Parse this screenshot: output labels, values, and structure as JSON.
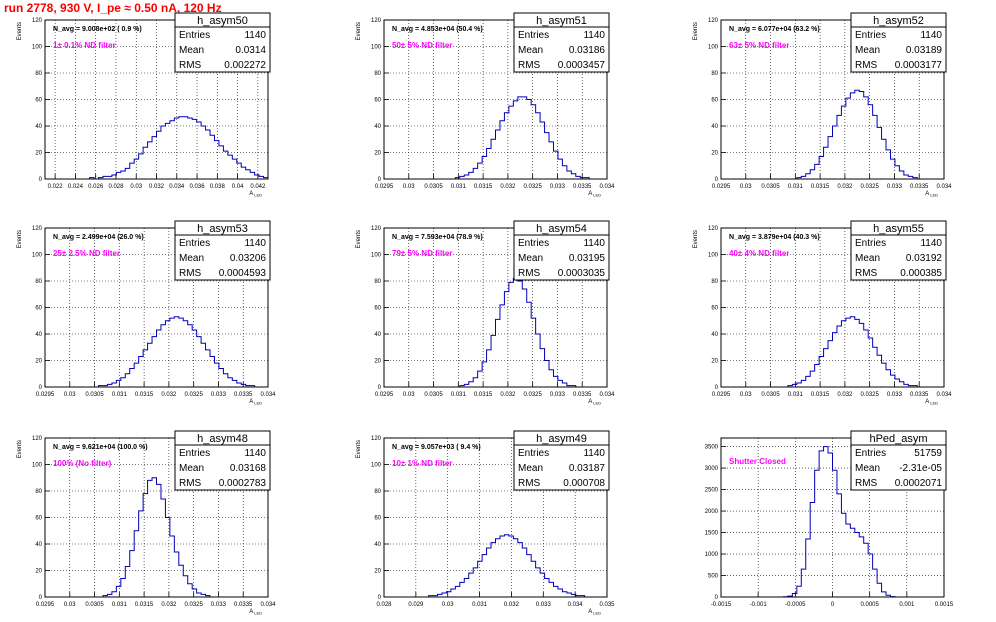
{
  "page": {
    "title": "run 2778,   930 V, I_pe ≈ 0.50 nA, 120 Hz"
  },
  "colors": {
    "histogram": "#0000b8",
    "annotation": "#ff00ff",
    "title_red": "#ff0000",
    "grid": "#000000"
  },
  "chart_data": [
    {
      "type": "bar",
      "name": "h_asym50",
      "ylabel": "Events",
      "xlabel": "A_{LED}",
      "xlim": [
        0.021,
        0.043
      ],
      "ylim": [
        0,
        120
      ],
      "xticks": [
        "0.022",
        "0.024",
        "0.026",
        "0.028",
        "0.03",
        "0.032",
        "0.034",
        "0.036",
        "0.038",
        "0.04",
        "0.042"
      ],
      "yticks": [
        "0",
        "20",
        "40",
        "60",
        "80",
        "100",
        "120"
      ],
      "stats": {
        "entries": "1140",
        "mean": "0.0314",
        "rms": "0.002272"
      },
      "navg": "N_avg = 9.008e+02 ( 0.9 %)",
      "note": "1± 0.1% ND filter",
      "grid": true,
      "values": [
        0,
        0,
        0,
        0,
        0,
        0,
        0,
        0,
        0,
        0,
        1,
        0,
        1,
        2,
        2,
        3,
        5,
        6,
        8,
        12,
        15,
        19,
        24,
        28,
        32,
        36,
        40,
        42,
        44,
        46,
        47,
        47,
        46,
        45,
        43,
        40,
        37,
        33,
        29,
        25,
        21,
        18,
        15,
        12,
        9,
        7,
        5,
        3,
        2,
        1
      ]
    },
    {
      "type": "bar",
      "name": "h_asym51",
      "ylabel": "Events",
      "xlabel": "A_{LED}",
      "xlim": [
        0.0295,
        0.034
      ],
      "ylim": [
        0,
        120
      ],
      "xticks": [
        "0.0295",
        "0.03",
        "0.0305",
        "0.031",
        "0.0315",
        "0.032",
        "0.0325",
        "0.033",
        "0.0335",
        "0.034"
      ],
      "yticks": [
        "0",
        "20",
        "40",
        "60",
        "80",
        "100",
        "120"
      ],
      "stats": {
        "entries": "1140",
        "mean": "0.03186",
        "rms": "0.0003457"
      },
      "navg": "N_avg = 4.853e+04 (50.4 %)",
      "note": "50± 5% ND filter",
      "grid": true,
      "values": [
        0,
        0,
        0,
        0,
        0,
        0,
        0,
        0,
        0,
        0,
        0,
        0,
        0,
        0,
        0,
        0,
        1,
        2,
        3,
        5,
        8,
        12,
        17,
        23,
        30,
        37,
        44,
        50,
        55,
        59,
        62,
        62,
        60,
        56,
        50,
        43,
        35,
        28,
        21,
        15,
        10,
        6,
        4,
        2,
        1,
        1,
        0,
        0,
        0,
        0
      ]
    },
    {
      "type": "bar",
      "name": "h_asym52",
      "ylabel": "Events",
      "xlabel": "A_{LED}",
      "xlim": [
        0.0295,
        0.034
      ],
      "ylim": [
        0,
        120
      ],
      "xticks": [
        "0.0295",
        "0.03",
        "0.0305",
        "0.031",
        "0.0315",
        "0.032",
        "0.0325",
        "0.033",
        "0.0335",
        "0.034"
      ],
      "yticks": [
        "0",
        "20",
        "40",
        "60",
        "80",
        "100",
        "120"
      ],
      "stats": {
        "entries": "1140",
        "mean": "0.03189",
        "rms": "0.0003177"
      },
      "navg": "N_avg = 6.077e+04 (63.2 %)",
      "note": "63± 5% ND filter",
      "grid": true,
      "values": [
        0,
        0,
        0,
        0,
        0,
        0,
        0,
        0,
        0,
        0,
        0,
        0,
        0,
        0,
        0,
        0,
        0,
        1,
        2,
        4,
        7,
        11,
        17,
        24,
        32,
        40,
        48,
        55,
        61,
        65,
        67,
        66,
        62,
        56,
        48,
        39,
        30,
        22,
        15,
        10,
        6,
        3,
        2,
        1,
        0,
        0,
        0,
        0,
        0,
        0
      ]
    },
    {
      "type": "bar",
      "name": "h_asym53",
      "ylabel": "Events",
      "xlabel": "A_{LED}",
      "xlim": [
        0.0295,
        0.034
      ],
      "ylim": [
        0,
        120
      ],
      "xticks": [
        "0.0295",
        "0.03",
        "0.0305",
        "0.031",
        "0.0315",
        "0.032",
        "0.0325",
        "0.033",
        "0.0335",
        "0.034"
      ],
      "yticks": [
        "0",
        "20",
        "40",
        "60",
        "80",
        "100",
        "120"
      ],
      "stats": {
        "entries": "1140",
        "mean": "0.03206",
        "rms": "0.0004593"
      },
      "navg": "N_avg = 2.499e+04 (26.0 %)",
      "note": "25± 2.5% ND filter",
      "grid": true,
      "values": [
        0,
        0,
        0,
        0,
        0,
        0,
        0,
        0,
        0,
        0,
        0,
        0,
        1,
        1,
        2,
        3,
        5,
        7,
        10,
        14,
        18,
        23,
        28,
        33,
        38,
        43,
        47,
        50,
        52,
        53,
        52,
        50,
        47,
        43,
        38,
        33,
        28,
        23,
        18,
        14,
        10,
        7,
        5,
        3,
        2,
        1,
        1,
        0,
        0,
        0
      ]
    },
    {
      "type": "bar",
      "name": "h_asym54",
      "ylabel": "Events",
      "xlabel": "A_{LED}",
      "xlim": [
        0.0295,
        0.034
      ],
      "ylim": [
        0,
        120
      ],
      "xticks": [
        "0.0295",
        "0.03",
        "0.0305",
        "0.031",
        "0.0315",
        "0.032",
        "0.0325",
        "0.033",
        "0.0335",
        "0.034"
      ],
      "yticks": [
        "0",
        "20",
        "40",
        "60",
        "80",
        "100",
        "120"
      ],
      "stats": {
        "entries": "1140",
        "mean": "0.03195",
        "rms": "0.0003035"
      },
      "navg": "N_avg = 7.593e+04 (78.9 %)",
      "note": "79± 5% ND filter",
      "grid": true,
      "values": [
        0,
        0,
        0,
        0,
        0,
        0,
        0,
        0,
        0,
        0,
        0,
        0,
        0,
        0,
        0,
        0,
        0,
        1,
        2,
        4,
        7,
        12,
        19,
        28,
        39,
        51,
        62,
        72,
        79,
        82,
        80,
        74,
        64,
        52,
        40,
        29,
        20,
        13,
        8,
        5,
        3,
        1,
        1,
        0,
        0,
        0,
        0,
        0,
        0,
        0
      ]
    },
    {
      "type": "bar",
      "name": "h_asym55",
      "ylabel": "Events",
      "xlabel": "A_{LED}",
      "xlim": [
        0.0295,
        0.034
      ],
      "ylim": [
        0,
        120
      ],
      "xticks": [
        "0.0295",
        "0.03",
        "0.0305",
        "0.031",
        "0.0315",
        "0.032",
        "0.0325",
        "0.033",
        "0.0335",
        "0.034"
      ],
      "yticks": [
        "0",
        "20",
        "40",
        "60",
        "80",
        "100",
        "120"
      ],
      "stats": {
        "entries": "1140",
        "mean": "0.03192",
        "rms": "0.000385"
      },
      "navg": "N_avg = 3.879e+04 (40.3 %)",
      "note": "40± 4% ND filter",
      "grid": true,
      "values": [
        0,
        0,
        0,
        0,
        0,
        0,
        0,
        0,
        0,
        0,
        0,
        0,
        0,
        0,
        0,
        1,
        2,
        3,
        5,
        8,
        12,
        17,
        23,
        29,
        35,
        41,
        46,
        50,
        52,
        53,
        51,
        48,
        43,
        37,
        30,
        24,
        18,
        13,
        9,
        6,
        4,
        2,
        1,
        1,
        0,
        0,
        0,
        0,
        0,
        0
      ]
    },
    {
      "type": "bar",
      "name": "h_asym48",
      "ylabel": "Events",
      "xlabel": "A_{LED}",
      "xlim": [
        0.0295,
        0.034
      ],
      "ylim": [
        0,
        120
      ],
      "xticks": [
        "0.0295",
        "0.03",
        "0.0305",
        "0.031",
        "0.0315",
        "0.032",
        "0.0325",
        "0.033",
        "0.0335",
        "0.034"
      ],
      "yticks": [
        "0",
        "20",
        "40",
        "60",
        "80",
        "100",
        "120"
      ],
      "stats": {
        "entries": "1140",
        "mean": "0.03168",
        "rms": "0.0002783"
      },
      "navg": "N_avg = 9.621e+04 (100.0 %)",
      "note": "100% (No filter)",
      "grid": true,
      "values": [
        0,
        0,
        0,
        0,
        0,
        0,
        0,
        0,
        0,
        0,
        0,
        0,
        0,
        1,
        2,
        4,
        8,
        14,
        23,
        35,
        50,
        65,
        78,
        88,
        90,
        85,
        74,
        60,
        46,
        34,
        24,
        16,
        10,
        6,
        3,
        2,
        1,
        0,
        0,
        0,
        0,
        0,
        0,
        0,
        0,
        0,
        0,
        0,
        0,
        0
      ]
    },
    {
      "type": "bar",
      "name": "h_asym49",
      "ylabel": "Events",
      "xlabel": "A_{LED}",
      "xlim": [
        0.028,
        0.035
      ],
      "ylim": [
        0,
        120
      ],
      "xticks": [
        "0.028",
        "0.029",
        "0.03",
        "0.031",
        "0.032",
        "0.033",
        "0.034",
        "0.035"
      ],
      "yticks": [
        "0",
        "20",
        "40",
        "60",
        "80",
        "100",
        "120"
      ],
      "stats": {
        "entries": "1140",
        "mean": "0.03187",
        "rms": "0.000708"
      },
      "navg": "N_avg = 9.057e+03 ( 9.4 %)",
      "note": "10± 1% ND filter",
      "grid": true,
      "values": [
        0,
        0,
        0,
        0,
        0,
        0,
        0,
        0,
        0,
        0,
        1,
        1,
        2,
        3,
        4,
        6,
        8,
        11,
        14,
        18,
        22,
        27,
        32,
        37,
        41,
        44,
        46,
        47,
        46,
        44,
        41,
        37,
        32,
        27,
        22,
        18,
        14,
        11,
        8,
        6,
        4,
        3,
        2,
        1,
        1,
        0,
        0,
        0,
        0,
        0
      ]
    },
    {
      "type": "bar",
      "name": "hPed_asym",
      "ylabel": "",
      "xlabel": "",
      "xlim": [
        -0.0015,
        0.0015
      ],
      "ylim": [
        0,
        3700
      ],
      "xticks": [
        "-0.0015",
        "-0.001",
        "-0.0005",
        "0",
        "0.0005",
        "0.001",
        "0.0015"
      ],
      "yticks": [
        "0",
        "500",
        "1000",
        "1500",
        "2000",
        "2500",
        "3000",
        "3500"
      ],
      "stats": {
        "entries": "51759",
        "mean": "-2.31e-05",
        "rms": "0.0002071"
      },
      "navg": "",
      "note": "Shutter Closed",
      "grid": true,
      "values": [
        0,
        0,
        0,
        0,
        0,
        0,
        0,
        0,
        0,
        0,
        0,
        0,
        0,
        0,
        5,
        20,
        80,
        250,
        650,
        1350,
        2200,
        2950,
        3400,
        3500,
        3350,
        2950,
        2400,
        1950,
        1700,
        1600,
        1500,
        1400,
        1250,
        1000,
        650,
        320,
        120,
        40,
        10,
        0,
        0,
        0,
        0,
        0,
        0,
        0,
        0,
        0,
        0,
        0
      ]
    }
  ]
}
